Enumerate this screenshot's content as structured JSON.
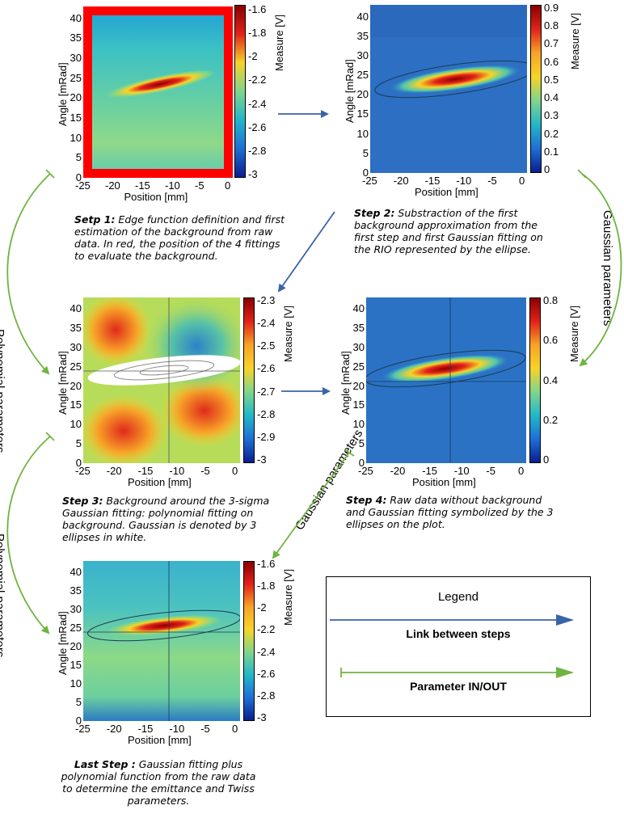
{
  "axes": {
    "x_label": "Position [mm]",
    "y_label": "Angle [mRad]",
    "cbar_label": "Measure [V]",
    "x_ticks": [
      "-25",
      "-20",
      "-15",
      "-10",
      "-5",
      "0"
    ],
    "y_ticks": [
      "0",
      "5",
      "10",
      "15",
      "20",
      "25",
      "30",
      "35",
      "40"
    ]
  },
  "panels": {
    "step1": {
      "cbar_ticks": [
        "-1.6",
        "-1.8",
        "-2",
        "-2.2",
        "-2.4",
        "-2.6",
        "-2.8",
        "-3"
      ],
      "caption_bold": "Setp 1:",
      "caption": " Edge function definition and first estimation of the background from raw data. In red, the position of the 4 fittings to evaluate the background."
    },
    "step2": {
      "cbar_ticks": [
        "0.9",
        "0.8",
        "0.7",
        "0.6",
        "0.5",
        "0.4",
        "0.3",
        "0.2",
        "0.1",
        "0"
      ],
      "caption_bold": "Step 2:",
      "caption": " Substraction of the first background approximation from the first step and first Gaussian fitting on the RIO represented by the ellipse."
    },
    "step3": {
      "cbar_ticks": [
        "-2.3",
        "-2.4",
        "-2.5",
        "-2.6",
        "-2.7",
        "-2.8",
        "-2.9",
        "-3"
      ],
      "caption_bold": "Step 3:",
      "caption": " Background around the 3-sigma Gaussian fitting: polynomial fitting on background. Gaussian is denoted by 3 ellipses in white."
    },
    "step4": {
      "cbar_ticks": [
        "0.8",
        "0.6",
        "0.4",
        "0.2",
        "0"
      ],
      "caption_bold": "Step 4:",
      "caption": " Raw data without background and Gaussian fitting symbolized by the 3 ellipses on the plot."
    },
    "last": {
      "cbar_ticks": [
        "-1.6",
        "-1.8",
        "-2",
        "-2.2",
        "-2.4",
        "-2.6",
        "-2.8",
        "-3"
      ],
      "caption_bold": "Last Step :",
      "caption": " Gaussian fitting plus polynomial function from the raw data to determine the emittance and Twiss parameters."
    }
  },
  "connectors": {
    "polynomial_1": "Polynomial parameters",
    "polynomial_2": "Polynomial parameters",
    "gaussian_1": "Gaussian parameters",
    "gaussian_2": "Gaussian parameters"
  },
  "legend": {
    "title": "Legend",
    "link_label": "Link between steps",
    "param_label": "Parameter IN/OUT"
  },
  "colors": {
    "link_arrow": "#3b63a8",
    "param_arrow": "#6fb43f",
    "highlight": "#ff0000"
  }
}
